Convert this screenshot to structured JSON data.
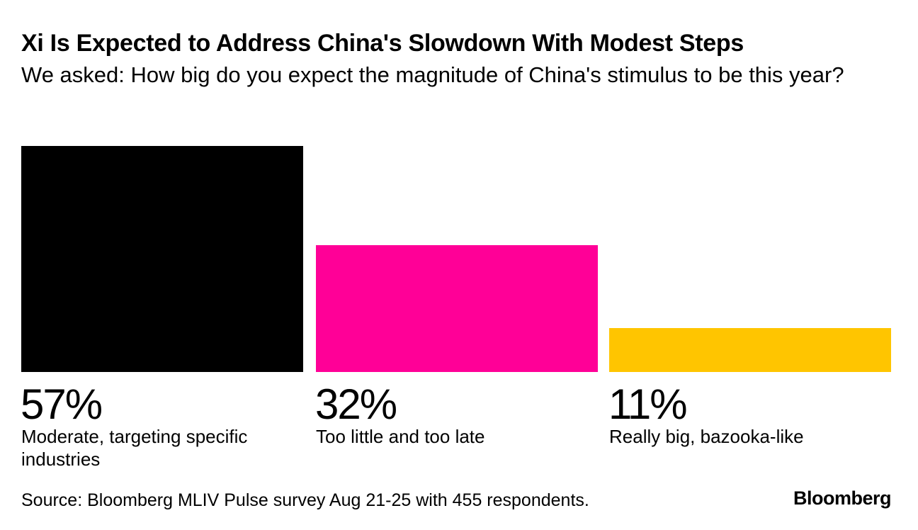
{
  "chart_data": {
    "type": "bar",
    "title": "Xi Is Expected to Address China's Slowdown With Modest Steps",
    "subtitle": "We asked: How big do you expect the magnitude of China's stimulus to be this year?",
    "categories": [
      "Moderate, targeting specific industries",
      "Too little and too late",
      "Really big, bazooka-like"
    ],
    "values": [
      57,
      32,
      11
    ],
    "value_labels": [
      "57%",
      "32%",
      "11%"
    ],
    "colors": [
      "#000000",
      "#ff0097",
      "#ffc500"
    ],
    "xlabel": "",
    "ylabel": "",
    "ylim": [
      0,
      57
    ],
    "grid": false
  },
  "source": "Source: Bloomberg MLIV Pulse survey Aug 21-25 with 455 respondents.",
  "brand": "Bloomberg"
}
